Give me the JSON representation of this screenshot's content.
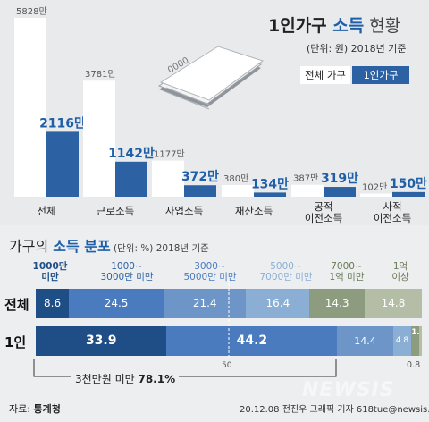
{
  "title": {
    "part1": "1인가구 ",
    "part2": "소득",
    "part3": " 현황"
  },
  "subtitle": "(단위: 원)  2018년 기준",
  "legend": {
    "total": "전체 가구",
    "single": "1인가구"
  },
  "chart_data": [
    {
      "type": "bar",
      "categories": [
        "전체",
        "근로소득",
        "사업소득",
        "재산소득",
        "공적\n이전소득",
        "사적\n이전소득"
      ],
      "series": [
        {
          "name": "전체 가구",
          "values": [
            5828,
            3781,
            1177,
            380,
            387,
            102
          ],
          "labels": [
            "5828만",
            "3781만",
            "1177만",
            "380만",
            "387만",
            "102만"
          ],
          "color": "#ffffff"
        },
        {
          "name": "1인가구",
          "values": [
            2116,
            1142,
            372,
            134,
            319,
            150
          ],
          "labels": [
            "2116만",
            "1142만",
            "372만",
            "134만",
            "319만",
            "150만"
          ],
          "color": "#2c62a3"
        }
      ],
      "ylim": [
        0,
        5828
      ]
    },
    {
      "type": "bar",
      "orientation": "horizontal-stacked",
      "categories": [
        "1000만\n미만",
        "1000~\n3000만 미만",
        "3000~\n5000만 미만",
        "5000~\n7000만 미만",
        "7000~\n1억 미만",
        "1억\n이상"
      ],
      "category_colors": [
        "#1f4e86",
        "#4a7bbf",
        "#6d95c8",
        "#8aaed4",
        "#8d9c7e",
        "#b4bea6"
      ],
      "header_colors": [
        "#1f4e86",
        "#2c62a3",
        "#4a7bbf",
        "#8aaed4",
        "#6a7b55",
        "#6a7b55"
      ],
      "series": [
        {
          "name": "전체",
          "values": [
            8.6,
            24.5,
            21.4,
            16.4,
            14.3,
            14.8
          ]
        },
        {
          "name": "1인",
          "values": [
            33.9,
            44.2,
            14.4,
            4.8,
            1.9,
            0.8
          ]
        }
      ],
      "marker": "50",
      "annotation": {
        "prefix": "3천만원 미만 ",
        "value": "78.1%"
      }
    }
  ],
  "dist": {
    "title_a": "가구의 ",
    "title_b": "소득 분포",
    "unit": " (단위: %) 2018년 기준"
  },
  "footer": {
    "source_label": "자료: ",
    "source": "통계청",
    "credit": "20.12.08  전진우 그래픽 기자  618tue@newsis.com"
  },
  "watermark": "NEWSIS"
}
